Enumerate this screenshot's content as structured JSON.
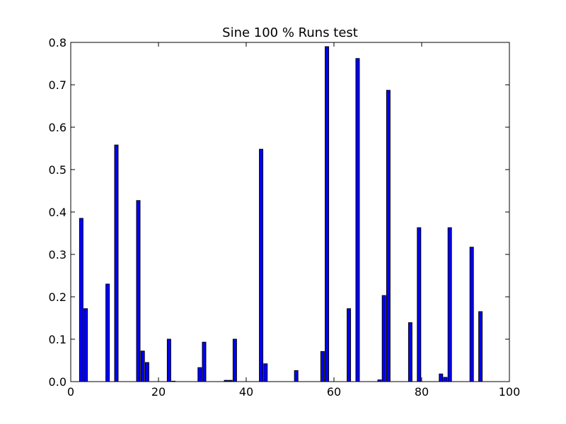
{
  "chart_data": {
    "type": "bar",
    "title": "Sine 100 % Runs test",
    "xlabel": "",
    "ylabel": "",
    "xlim": [
      0,
      100
    ],
    "ylim": [
      0,
      0.8
    ],
    "xticks": [
      0,
      20,
      40,
      60,
      80,
      100
    ],
    "yticks": [
      0.0,
      0.1,
      0.2,
      0.3,
      0.4,
      0.5,
      0.6,
      0.7,
      0.8
    ],
    "xtick_labels": [
      "0",
      "20",
      "40",
      "60",
      "80",
      "100"
    ],
    "ytick_labels": [
      "0.0",
      "0.1",
      "0.2",
      "0.3",
      "0.4",
      "0.5",
      "0.6",
      "0.7",
      "0.8"
    ],
    "bar_color": "#0000ff",
    "grid": false,
    "x": [
      2,
      3,
      8,
      10,
      15,
      16,
      17,
      22,
      23,
      29,
      30,
      35,
      36,
      37,
      43,
      44,
      51,
      57,
      58,
      63,
      65,
      70,
      71,
      72,
      77,
      79,
      84,
      85,
      86,
      91,
      93
    ],
    "values": [
      0.385,
      0.172,
      0.23,
      0.558,
      0.427,
      0.072,
      0.045,
      0.1,
      0.001,
      0.033,
      0.093,
      0.003,
      0.003,
      0.1,
      0.548,
      0.042,
      0.026,
      0.071,
      0.79,
      0.172,
      0.762,
      0.004,
      0.203,
      0.687,
      0.139,
      0.363,
      0.018,
      0.01,
      0.363,
      0.317,
      0.165
    ]
  }
}
